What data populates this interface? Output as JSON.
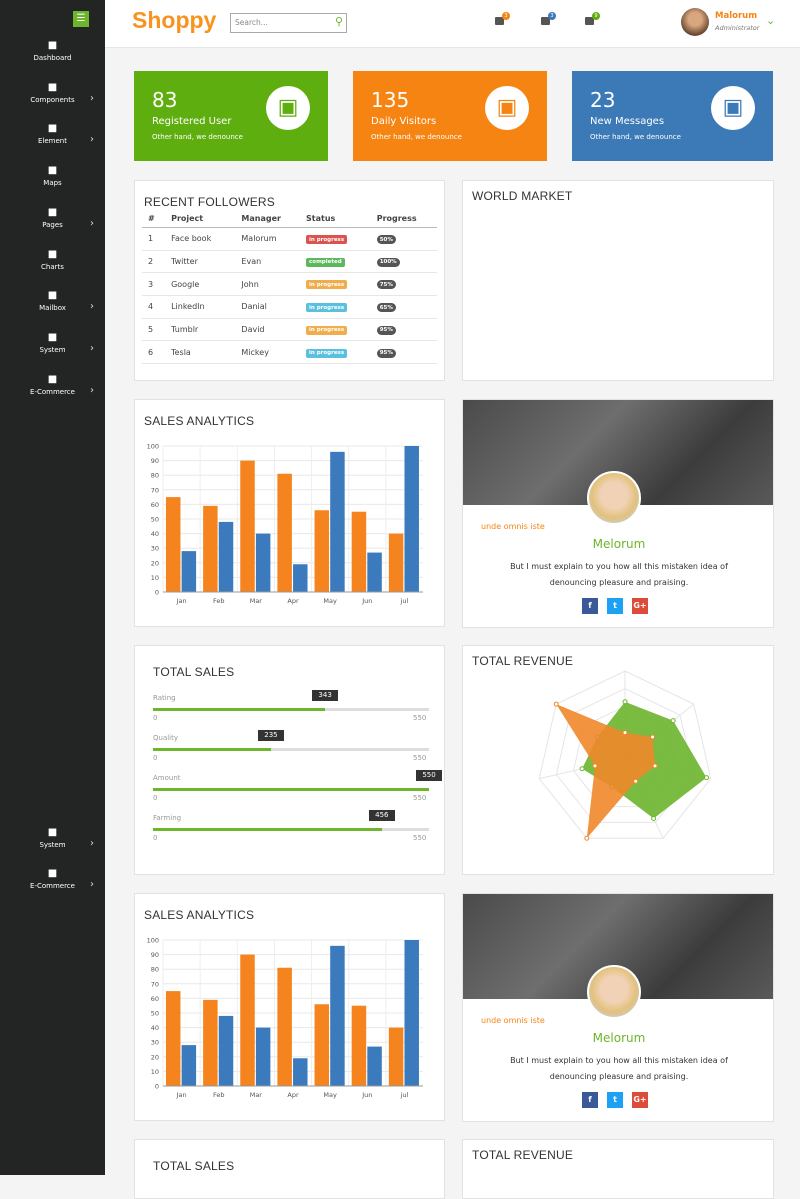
{
  "header": {
    "brand": "Shoppy",
    "search_placeholder": "Search...",
    "badges": [
      "3",
      "3",
      "9"
    ],
    "user_name": "Malorum",
    "user_role": "Administrator"
  },
  "sidebar": {
    "items": [
      "Dashboard",
      "Components",
      "Element",
      "Maps",
      "Pages",
      "Charts",
      "Mailbox",
      "System",
      "E-Commerce"
    ],
    "bottom_items": [
      "System",
      "E-Commerce"
    ]
  },
  "stats": [
    {
      "value": "83",
      "label": "Registered User",
      "note": "Other hand, we denounce",
      "color": "#5fae0f"
    },
    {
      "value": "135",
      "label": "Daily Visitors",
      "note": "Other hand, we denounce",
      "color": "#f58412"
    },
    {
      "value": "23",
      "label": "New Messages",
      "note": "Other hand, we denounce",
      "color": "#3c79b7"
    }
  ],
  "followers": {
    "title": "RECENT FOLLOWERS",
    "columns": [
      "#",
      "Project",
      "Manager",
      "Status",
      "Progress"
    ],
    "rows": [
      [
        "1",
        "Face book",
        "Malorum",
        "in progress",
        "50%"
      ],
      [
        "2",
        "Twitter",
        "Evan",
        "completed",
        "100%"
      ],
      [
        "3",
        "Google",
        "John",
        "in progress",
        "75%"
      ],
      [
        "4",
        "LinkedIn",
        "Danial",
        "in progress",
        "65%"
      ],
      [
        "5",
        "Tumblr",
        "David",
        "in progress",
        "95%"
      ],
      [
        "6",
        "Tesla",
        "Mickey",
        "in progress",
        "95%"
      ]
    ],
    "status_colors": [
      "#d9534f",
      "#5cb85c",
      "#f0ad4e",
      "#5bc0de",
      "#f0ad4e",
      "#5bc0de"
    ]
  },
  "world_market": {
    "title": "WORLD MARKET"
  },
  "sales_analytics": [
    {
      "type": "bar",
      "title": "SALES ANALYTICS",
      "categories": [
        "Jan",
        "Feb",
        "Mar",
        "Apr",
        "May",
        "Jun",
        "jul"
      ],
      "series": [
        {
          "color": "#f5841f",
          "values": [
            65,
            59,
            90,
            81,
            56,
            55,
            40
          ]
        },
        {
          "color": "#3b7bbd",
          "values": [
            28,
            48,
            40,
            19,
            96,
            27,
            100
          ]
        }
      ],
      "ylim": [
        0,
        100
      ],
      "yticks": [
        0,
        10,
        20,
        30,
        40,
        50,
        60,
        70,
        80,
        90,
        100
      ],
      "grid": true
    },
    {
      "type": "bar",
      "title": "SALES ANALYTICS",
      "categories": [
        "Jan",
        "Feb",
        "Mar",
        "Apr",
        "May",
        "Jun",
        "jul"
      ],
      "series": [
        {
          "color": "#f5841f",
          "values": [
            65,
            59,
            90,
            81,
            56,
            55,
            40
          ]
        },
        {
          "color": "#3b7bbd",
          "values": [
            28,
            48,
            40,
            19,
            96,
            27,
            100
          ]
        }
      ],
      "ylim": [
        0,
        100
      ],
      "yticks": [
        0,
        10,
        20,
        30,
        40,
        50,
        60,
        70,
        80,
        90,
        100
      ],
      "grid": true
    }
  ],
  "profiles": [
    {
      "caption": "unde omnis iste",
      "name": "Melorum",
      "text": "But I must explain to you how all this mistaken idea of denouncing pleasure and praising.",
      "social": [
        "f",
        "t",
        "G+"
      ]
    },
    {
      "caption": "unde omnis iste",
      "name": "Melorum",
      "text": "But I must explain to you how all this mistaken idea of denouncing pleasure and praising.",
      "social": [
        "f",
        "t",
        "G+"
      ]
    }
  ],
  "total_sales": [
    {
      "title": "TOTAL SALES",
      "sliders": [
        {
          "label": "Rating",
          "value": 343,
          "min": 0,
          "max": 550
        },
        {
          "label": "Quality",
          "value": 235,
          "min": 0,
          "max": 550
        },
        {
          "label": "Amount",
          "value": 550,
          "min": 0,
          "max": 550
        },
        {
          "label": "Farming",
          "value": 456,
          "min": 0,
          "max": 550
        }
      ]
    },
    {
      "title": "TOTAL SALES"
    }
  ],
  "total_revenue": [
    {
      "title": "TOTAL REVENUE",
      "chart": {
        "type": "radar",
        "rlim": [
          0,
          100
        ],
        "series": [
          {
            "color": "#6cb52d",
            "values": [
              65,
              70,
              95,
              75,
              35,
              50,
              40
            ]
          },
          {
            "color": "#f0872a",
            "values": [
              30,
              40,
              35,
              28,
              100,
              35,
              100
            ]
          }
        ]
      }
    },
    {
      "title": "TOTAL REVENUE"
    }
  ]
}
